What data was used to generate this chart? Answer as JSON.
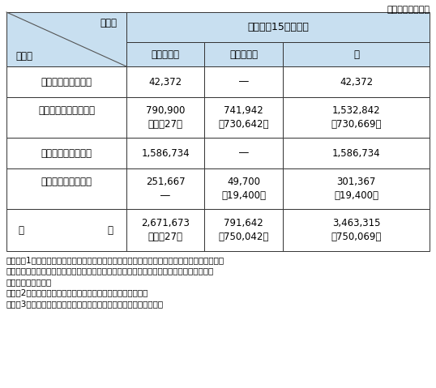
{
  "title_unit": "（単位：百万円）",
  "header_top_center": "平　成　15　年　度",
  "header_col1_top": "区　分",
  "header_col1_bot": "項　目",
  "header_col2": "予　算　額",
  "header_col3": "融　資　額",
  "header_col4": "計",
  "rows": [
    {
      "label": "科　学技術の研　究",
      "col2": "42,372",
      "col2b": "",
      "col3": "―",
      "col3b": "",
      "col4": "42,372",
      "col4b": ""
    },
    {
      "label": "災　　害　　予　　防",
      "col2": "790,900",
      "col2b": "［　　27］",
      "col3": "741,942",
      "col3b": "［730,642］",
      "col4": "1,532,842",
      "col4b": "［730,669］"
    },
    {
      "label": "国　土　　保　　全",
      "col2": "1,586,734",
      "col2b": "",
      "col3": "―",
      "col3b": "",
      "col4": "1,586,734",
      "col4b": ""
    },
    {
      "label": "災　害　復　旧　等",
      "col2": "251,667",
      "col2b": "―",
      "col3": "49,700",
      "col3b": "［19,400］",
      "col4": "301,367",
      "col4b": "［19,400］"
    }
  ],
  "total_label1": "合",
  "total_label2": "計",
  "total_col2": "2,671,673",
  "total_col2b": "［　　27］",
  "total_col3": "791,642",
  "total_col3b": "［750,042］",
  "total_col4": "3,463,315",
  "total_col4b": "［750,069］",
  "notes": [
    "（注）、1　政府の当初予算における防災関係予算額等を各項目ごとに百万円未満四捨五入し，",
    "　　　　一般会計と特別会計との間及び政府関係機関との間の重複計数を除いて集計したも",
    "　　　　のである。",
    "　　　2　［　］は，政府関係機関の予算額等で内数である。",
    "　　　3　単位未満四捨五入のため合計と一致しないところがある。"
  ],
  "header_bg": "#c8dff0",
  "border_color": "#333333"
}
